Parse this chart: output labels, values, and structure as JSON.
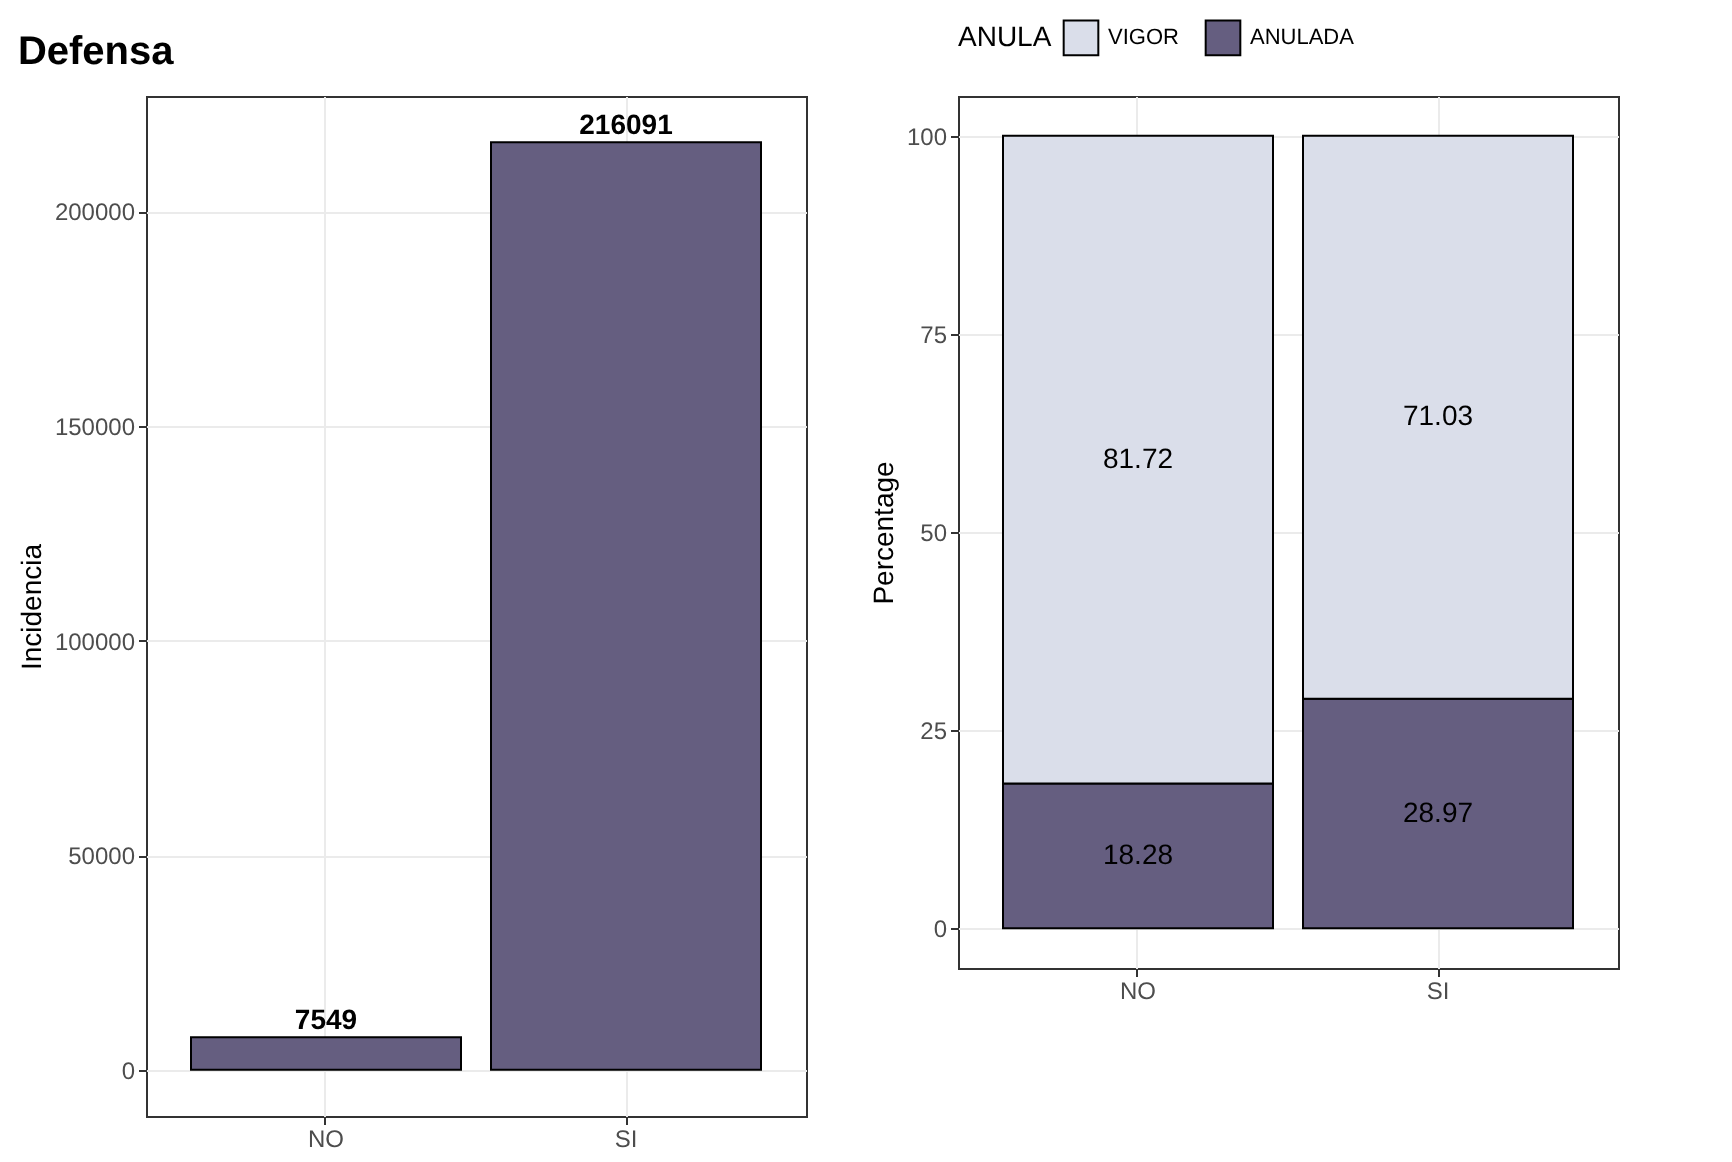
{
  "chart_data": [
    {
      "type": "bar",
      "title": "Defensa",
      "ylabel": "Incidencia",
      "categories": [
        "NO",
        "SI"
      ],
      "values": [
        7549,
        216091
      ],
      "color": "#655e80",
      "ylim": [
        -10805,
        226896
      ],
      "yticks": [
        0,
        50000,
        100000,
        150000,
        200000
      ],
      "grid": true,
      "data_labels": true
    },
    {
      "type": "bar",
      "ylabel": "Percentage",
      "legend_title": "ANULA",
      "legend": "top",
      "stacked": true,
      "categories": [
        "NO",
        "SI"
      ],
      "series": [
        {
          "name": "ANULADA",
          "color": "#655e80",
          "values": [
            18.28,
            28.97
          ]
        },
        {
          "name": "VIGOR",
          "color": "#dadeea",
          "values": [
            81.72,
            71.03
          ]
        }
      ],
      "ylim": [
        -5,
        105
      ],
      "yticks": [
        0,
        25,
        50,
        75,
        100
      ],
      "grid": true,
      "data_labels": true
    }
  ]
}
